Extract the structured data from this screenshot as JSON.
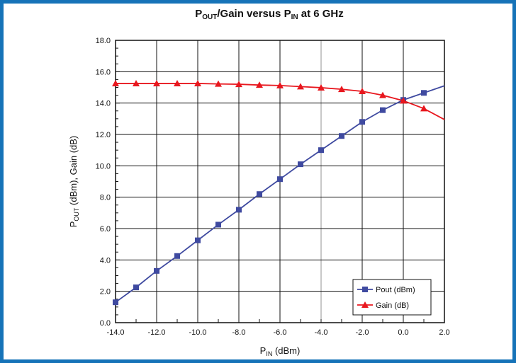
{
  "chart_data": {
    "type": "line",
    "title": {
      "parts": [
        {
          "text": "P",
          "sub": false
        },
        {
          "text": "OUT",
          "sub": true
        },
        {
          "text": "/Gain versus P",
          "sub": false
        },
        {
          "text": "IN",
          "sub": true
        },
        {
          "text": " at 6 GHz",
          "sub": false
        }
      ]
    },
    "xlabel": {
      "parts": [
        {
          "text": "P",
          "sub": false
        },
        {
          "text": "IN",
          "sub": true
        },
        {
          "text": " (dBm)",
          "sub": false
        }
      ]
    },
    "ylabel": {
      "parts": [
        {
          "text": "P",
          "sub": false
        },
        {
          "text": "OUT",
          "sub": true
        },
        {
          "text": " (dBm), Gain (dB)",
          "sub": false
        }
      ]
    },
    "xlim": [
      -14,
      2
    ],
    "ylim": [
      0,
      18
    ],
    "xticks": [
      -14,
      -12,
      -10,
      -8,
      -6,
      -4,
      -2,
      0,
      2
    ],
    "xtick_labels": [
      "-14.0",
      "-12.0",
      "-10.0",
      "-8.0",
      "-6.0",
      "-4.0",
      "-2.0",
      "0.0",
      "2.0"
    ],
    "yticks": [
      0,
      2,
      4,
      6,
      8,
      10,
      12,
      14,
      16,
      18
    ],
    "ytick_labels": [
      "0.0",
      "2.0",
      "4.0",
      "6.0",
      "8.0",
      "10.0",
      "12.0",
      "14.0",
      "16.0",
      "18.0"
    ],
    "grid": true,
    "legend_position": "bottom-right",
    "series": [
      {
        "name": "Pout (dBm)",
        "color": "#3f4aa0",
        "marker": "square",
        "x": [
          -14,
          -13,
          -12,
          -11,
          -10,
          -9,
          -8,
          -7,
          -6,
          -5,
          -4,
          -3,
          -2,
          -1,
          0,
          1
        ],
        "y": [
          1.3,
          2.25,
          3.3,
          4.25,
          5.25,
          6.25,
          7.2,
          8.2,
          9.15,
          10.1,
          11.0,
          11.9,
          12.8,
          13.55,
          14.2,
          14.65
        ],
        "line_end": [
          2,
          15.1
        ]
      },
      {
        "name": "Gain (dB)",
        "color": "#e8171e",
        "marker": "triangle",
        "x": [
          -14,
          -13,
          -12,
          -11,
          -10,
          -9,
          -8,
          -7,
          -6,
          -5,
          -4,
          -3,
          -2,
          -1,
          0,
          1
        ],
        "y": [
          15.25,
          15.25,
          15.25,
          15.25,
          15.25,
          15.22,
          15.2,
          15.15,
          15.12,
          15.05,
          14.98,
          14.88,
          14.75,
          14.5,
          14.15,
          13.65
        ],
        "line_end": [
          2,
          12.95
        ]
      }
    ]
  }
}
